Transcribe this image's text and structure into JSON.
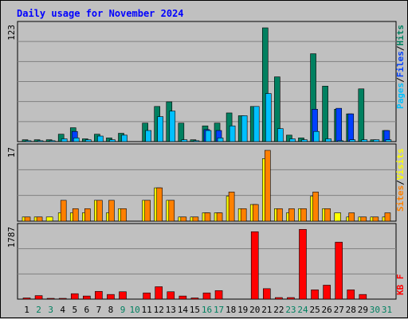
{
  "chart_data": {
    "type": "bar",
    "title": "Daily usage for November 2024",
    "colors": {
      "title": "#0000ff",
      "pages": "#00c0ff",
      "files": "#0040ff",
      "hits": "#008060",
      "sites": "#ff8000",
      "visits": "#ffff00",
      "kbytes": "#ff0000",
      "weekend_label": "#008060",
      "weekday_label": "#000000"
    },
    "legend": {
      "top": [
        {
          "key": "pages",
          "label": "Pages"
        },
        {
          "key": "sep1",
          "label": "/"
        },
        {
          "key": "files",
          "label": "Files"
        },
        {
          "key": "sep2",
          "label": "/"
        },
        {
          "key": "hits",
          "label": "Hits"
        }
      ],
      "middle": [
        {
          "key": "sites",
          "label": "Sites"
        },
        {
          "key": "sep3",
          "label": "/"
        },
        {
          "key": "visits",
          "label": "Visits"
        }
      ],
      "bottom": [
        {
          "key": "kbytes",
          "label": "KB F"
        }
      ]
    },
    "panels": {
      "hits": {
        "max_label": "123",
        "ymax": 123
      },
      "sites": {
        "max_label": "17",
        "ymax": 17
      },
      "kbytes": {
        "max_label": "1787",
        "ymax": 1787
      }
    },
    "days": [
      "1",
      "2",
      "3",
      "4",
      "5",
      "6",
      "7",
      "8",
      "9",
      "10",
      "11",
      "12",
      "13",
      "14",
      "15",
      "16",
      "17",
      "18",
      "19",
      "20",
      "21",
      "22",
      "23",
      "24",
      "25",
      "26",
      "27",
      "28",
      "29",
      "30",
      "31"
    ],
    "weekend_days": [
      2,
      3,
      9,
      10,
      16,
      17,
      23,
      24,
      30,
      31
    ],
    "series": [
      {
        "name": "Hits",
        "key": "hits",
        "panel": "hits",
        "values": [
          2,
          2,
          2,
          8,
          15,
          3,
          8,
          4,
          9,
          0,
          20,
          38,
          43,
          20,
          2,
          17,
          20,
          31,
          28,
          38,
          123,
          70,
          7,
          4,
          95,
          60,
          35,
          30,
          57,
          2,
          12
        ]
      },
      {
        "name": "Files",
        "key": "files",
        "panel": "hits",
        "values": [
          0,
          0,
          0,
          0,
          11,
          0,
          0,
          0,
          0,
          0,
          0,
          0,
          0,
          0,
          0,
          13,
          12,
          0,
          0,
          0,
          0,
          0,
          0,
          0,
          35,
          0,
          36,
          30,
          0,
          0,
          12
        ]
      },
      {
        "name": "Pages",
        "key": "pages",
        "panel": "hits",
        "values": [
          1,
          1,
          1,
          3,
          4,
          2,
          6,
          2,
          7,
          0,
          12,
          27,
          33,
          2,
          1,
          12,
          4,
          17,
          28,
          38,
          52,
          14,
          3,
          2,
          11,
          3,
          1,
          2,
          2,
          2,
          2
        ]
      },
      {
        "name": "Sites",
        "key": "sites",
        "panel": "sites",
        "values": [
          1,
          1,
          0,
          5,
          3,
          3,
          5,
          5,
          3,
          0,
          5,
          8,
          5,
          1,
          1,
          2,
          2,
          7,
          3,
          4,
          17,
          3,
          3,
          3,
          7,
          3,
          0,
          2,
          1,
          1,
          2
        ]
      },
      {
        "name": "Visits",
        "key": "visits",
        "panel": "sites",
        "values": [
          1,
          1,
          1,
          2,
          2,
          2,
          5,
          2,
          3,
          0,
          5,
          8,
          5,
          1,
          1,
          2,
          2,
          6,
          3,
          4,
          15,
          3,
          2,
          3,
          6,
          3,
          2,
          1,
          1,
          1,
          1
        ]
      },
      {
        "name": "KBytes",
        "key": "kbytes",
        "panel": "kbytes",
        "values": [
          30,
          90,
          20,
          20,
          140,
          80,
          200,
          120,
          190,
          0,
          160,
          320,
          190,
          80,
          30,
          160,
          220,
          0,
          0,
          1740,
          270,
          40,
          40,
          1800,
          240,
          360,
          1470,
          240,
          120,
          0,
          0
        ]
      }
    ]
  }
}
